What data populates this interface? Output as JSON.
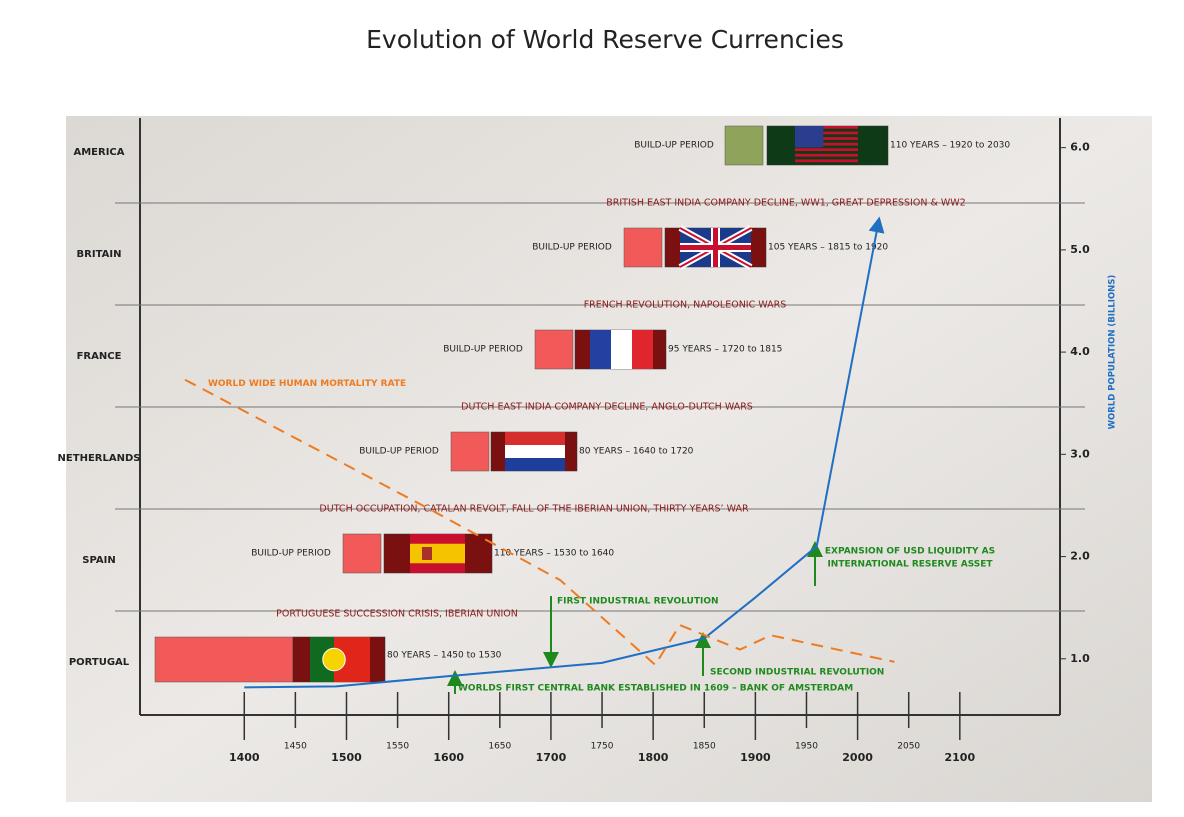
{
  "title": "Evolution of World Reserve Currencies",
  "chart_data": {
    "type": "line",
    "xlim": [
      1298,
      2198
    ],
    "xticks": [
      1400,
      1450,
      1500,
      1550,
      1600,
      1650,
      1700,
      1750,
      1800,
      1850,
      1900,
      1950,
      2000,
      2050,
      2100
    ],
    "y2lim": [
      0.45,
      6.29
    ],
    "y2ticks": [
      {
        "value": 1,
        "label": "1.0"
      },
      {
        "value": 2,
        "label": "2.0"
      },
      {
        "value": 3,
        "label": "3.0"
      },
      {
        "value": 4,
        "label": "4.0"
      },
      {
        "value": 5,
        "label": "5.0"
      },
      {
        "value": 6,
        "label": "6.0"
      }
    ],
    "y2label": "WORLD POPULATION (BILLIONS)",
    "series": [
      {
        "color": "#1f6fc4",
        "axis": "y2",
        "x": [
          1400,
          1490,
          1600,
          1750,
          1850,
          1900,
          1960,
          2020
        ],
        "values": [
          0.72,
          0.73,
          0.83,
          0.96,
          1.2,
          1.6,
          2.1,
          5.25
        ]
      },
      {
        "name": "WORLD WIDE HUMAN MORTALITY RATE",
        "color": "#ee7b22",
        "axis": "y2",
        "x": [
          1342,
          1582,
          1709,
          1802,
          1826,
          1885,
          1915,
          2036
        ],
        "values": [
          3.73,
          2.46,
          1.77,
          0.94,
          1.33,
          1.09,
          1.23,
          0.97
        ]
      }
    ],
    "rows": [
      {
        "country": "AMERICA",
        "buildup": "BUILD-UP PERIOD",
        "period": "110 YEARS – 1920 to 2030"
      },
      {
        "country": "BRITAIN",
        "buildup": "BUILD-UP PERIOD",
        "period": "105 YEARS – 1815 to 1920"
      },
      {
        "country": "FRANCE",
        "buildup": "BUILD-UP PERIOD",
        "period": "95 YEARS – 1720 to 1815"
      },
      {
        "country": "NETHERLANDS",
        "buildup": "BUILD-UP PERIOD",
        "period": "80 YEARS – 1640 to 1720"
      },
      {
        "country": "SPAIN",
        "buildup": "BUILD-UP PERIOD",
        "period": "110 YEARS – 1530 to 1640"
      },
      {
        "country": "PORTUGAL",
        "period": "80 YEARS – 1450 to 1530"
      }
    ],
    "events": [
      "BRITISH EAST INDIA COMPANY DECLINE, WW1, GREAT DEPRESSION & WW2",
      "FRENCH REVOLUTION, NAPOLEONIC WARS",
      "DUTCH EAST INDIA COMPANY DECLINE, ANGLO-DUTCH WARS",
      "DUTCH OCCUPATION, CATALAN REVOLT, FALL OF THE IBERIAN UNION, THIRTY YEARS’ WAR",
      "PORTUGUESE SUCCESSION CRISIS, IBERIAN UNION"
    ],
    "annotations": [
      "FIRST INDUSTRIAL REVOLUTION",
      "SECOND INDUSTRIAL REVOLUTION",
      "WORLDS FIRST CENTRAL BANK ESTABLISHED IN 1609 – BANK OF AMSTERDAM",
      "EXPANSION OF USD LIQUIDITY AS",
      "INTERNATIONAL RESERVE ASSET"
    ]
  }
}
